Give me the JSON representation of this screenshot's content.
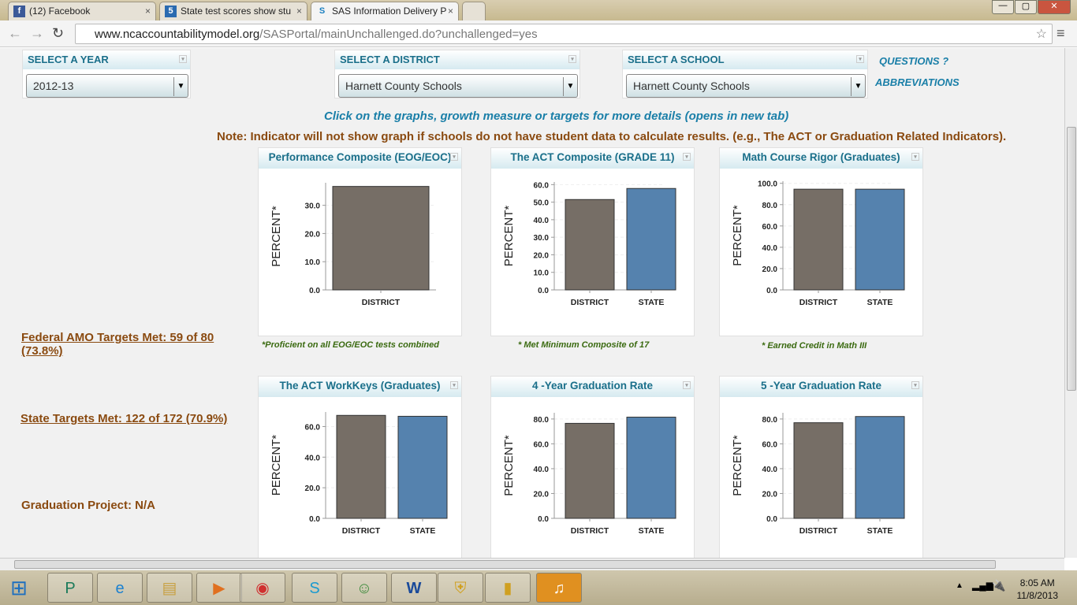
{
  "browser": {
    "tabs": [
      {
        "label": "(12) Facebook",
        "icon": "facebook-icon"
      },
      {
        "label": "State test scores show stu",
        "icon": "news-icon"
      },
      {
        "label": "SAS Information Delivery P",
        "icon": "sas-icon"
      }
    ],
    "url_host": "www.ncaccountabilitymodel.org",
    "url_path": "/SASPortal/mainUnchallenged.do?unchallenged=yes"
  },
  "filters": {
    "year": {
      "label": "SELECT A YEAR",
      "value": "2012-13"
    },
    "district": {
      "label": "SELECT A DISTRICT",
      "value": "Harnett County Schools"
    },
    "school": {
      "label": "SELECT A SCHOOL",
      "value": "Harnett County Schools"
    }
  },
  "links": {
    "questions": "QUESTIONS ?",
    "abbreviations": "ABBREVIATIONS"
  },
  "instructions": "Click on the graphs, growth measure or targets for more details (opens in new tab)",
  "note": "Note: Indicator will not show graph if schools do not have student data to calculate results. (e.g., The ACT or Graduation Related Indicators).",
  "sidebar": {
    "federal": "Federal AMO Targets Met: 59 of 80",
    "federal_pct": "(73.8%)",
    "state": "State Targets Met: 122 of 172 (70.9%)",
    "grad_project": "Graduation Project: N/A"
  },
  "chart_data": [
    {
      "type": "bar",
      "title": "Performance Composite (EOG/EOC)",
      "ylabel": "PERCENT*",
      "categories": [
        "DISTRICT"
      ],
      "values": [
        36.7
      ],
      "ylim": [
        0,
        38
      ],
      "yticks": [
        "0.0",
        "10.0",
        "20.0",
        "30.0"
      ],
      "yvals": [
        0,
        10,
        20,
        30
      ],
      "footnote": "*Proficient on all EOG/EOC tests combined"
    },
    {
      "type": "bar",
      "title": "The ACT Composite (GRADE 11)",
      "ylabel": "PERCENT*",
      "categories": [
        "DISTRICT",
        "STATE"
      ],
      "values": [
        51.5,
        57.8
      ],
      "ylim": [
        0,
        61.5
      ],
      "yticks": [
        "0.0",
        "10.0",
        "20.0",
        "30.0",
        "40.0",
        "50.0",
        "60.0"
      ],
      "yvals": [
        0,
        10,
        20,
        30,
        40,
        50,
        60
      ],
      "footnote": "* Met Minimum Composite of 17"
    },
    {
      "type": "bar",
      "title": "Math Course Rigor (Graduates)",
      "ylabel": "PERCENT*",
      "categories": [
        "DISTRICT",
        "STATE"
      ],
      "values": [
        94.5,
        94.5
      ],
      "ylim": [
        0,
        102
      ],
      "yticks": [
        "0.0",
        "20.0",
        "40.0",
        "60.0",
        "80.0",
        "100.0"
      ],
      "yvals": [
        0,
        20,
        40,
        60,
        80,
        100
      ],
      "footnote": "* Earned Credit in Math III"
    },
    {
      "type": "bar",
      "title": "The ACT WorkKeys (Graduates)",
      "ylabel": "PERCENT*",
      "categories": [
        "DISTRICT",
        "STATE"
      ],
      "values": [
        67.3,
        66.7
      ],
      "ylim": [
        0,
        69.5
      ],
      "yticks": [
        "0.0",
        "20.0",
        "40.0",
        "60.0"
      ],
      "yvals": [
        0,
        20,
        40,
        60
      ],
      "footnote": ""
    },
    {
      "type": "bar",
      "title": "4 -Year Graduation Rate",
      "ylabel": "PERCENT*",
      "categories": [
        "DISTRICT",
        "STATE"
      ],
      "values": [
        76.5,
        81.5
      ],
      "ylim": [
        0,
        85
      ],
      "yticks": [
        "0.0",
        "20.0",
        "40.0",
        "60.0",
        "80.0"
      ],
      "yvals": [
        0,
        20,
        40,
        60,
        80
      ],
      "footnote": ""
    },
    {
      "type": "bar",
      "title": "5 -Year Graduation Rate",
      "ylabel": "PERCENT*",
      "categories": [
        "DISTRICT",
        "STATE"
      ],
      "values": [
        77,
        82
      ],
      "ylim": [
        0,
        85
      ],
      "yticks": [
        "0.0",
        "20.0",
        "40.0",
        "60.0",
        "80.0"
      ],
      "yvals": [
        0,
        20,
        40,
        60,
        80
      ],
      "footnote": ""
    }
  ],
  "colors": {
    "district": "#766e66",
    "state": "#5582ae"
  },
  "taskbar": {
    "time": "8:05 AM",
    "date": "11/8/2013"
  }
}
